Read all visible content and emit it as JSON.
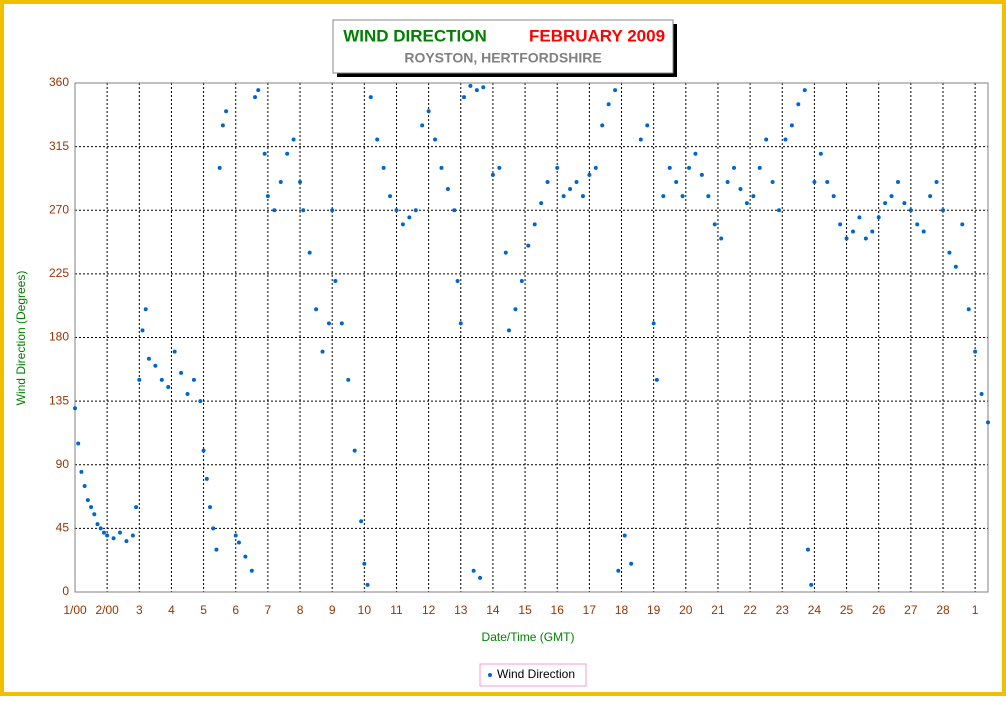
{
  "chart_data": {
    "type": "scatter",
    "title": "WIND DIRECTION",
    "title_period": "FEBRUARY 2009",
    "subtitle": "ROYSTON, HERTFORDSHIRE",
    "x_label": "Date/Time (GMT)",
    "y_label": "Wind Direction (Degrees)",
    "xlim": [
      1,
      29.4
    ],
    "xticks": [
      {
        "value": 1,
        "label": "1/00"
      },
      {
        "value": 2,
        "label": "2/00"
      },
      3,
      4,
      5,
      6,
      7,
      8,
      9,
      10,
      11,
      12,
      13,
      14,
      15,
      16,
      17,
      18,
      19,
      20,
      21,
      22,
      23,
      24,
      25,
      26,
      27,
      28,
      {
        "value": 29,
        "label": "1"
      }
    ],
    "ylim": [
      0,
      360
    ],
    "yticks": [
      0,
      45,
      90,
      135,
      180,
      225,
      270,
      315,
      360
    ],
    "grid": true,
    "legend": "bottom",
    "series": [
      {
        "name": "Wind Direction",
        "color": "#0066cc",
        "x": [
          1.0,
          1.1,
          1.2,
          1.3,
          1.4,
          1.5,
          1.6,
          1.7,
          1.8,
          1.9,
          2.0,
          2.2,
          2.4,
          2.6,
          2.8,
          2.9,
          3.0,
          3.1,
          3.2,
          3.3,
          3.5,
          3.7,
          3.9,
          4.1,
          4.3,
          4.5,
          4.7,
          4.9,
          5.0,
          5.1,
          5.2,
          5.3,
          5.4,
          5.5,
          5.6,
          5.7,
          6.0,
          6.1,
          6.3,
          6.5,
          6.6,
          6.7,
          6.9,
          7.0,
          7.2,
          7.4,
          7.6,
          7.8,
          8.0,
          8.1,
          8.3,
          8.5,
          8.7,
          8.9,
          9.0,
          9.1,
          9.3,
          9.5,
          9.7,
          9.9,
          10.0,
          10.1,
          10.2,
          10.4,
          10.6,
          10.8,
          11.0,
          11.2,
          11.4,
          11.6,
          11.8,
          12.0,
          12.2,
          12.4,
          12.6,
          12.8,
          12.9,
          13.0,
          13.1,
          13.3,
          13.4,
          13.5,
          13.6,
          13.7,
          14.0,
          14.2,
          14.4,
          14.5,
          14.7,
          14.9,
          15.1,
          15.3,
          15.5,
          15.7,
          16.0,
          16.2,
          16.4,
          16.6,
          16.8,
          17.0,
          17.2,
          17.4,
          17.6,
          17.8,
          17.9,
          18.1,
          18.3,
          18.6,
          18.8,
          19.0,
          19.1,
          19.3,
          19.5,
          19.7,
          19.9,
          20.1,
          20.3,
          20.5,
          20.7,
          20.9,
          21.1,
          21.3,
          21.5,
          21.7,
          21.9,
          22.1,
          22.3,
          22.5,
          22.7,
          22.9,
          23.1,
          23.3,
          23.5,
          23.7,
          23.8,
          23.9,
          24.0,
          24.2,
          24.4,
          24.6,
          24.8,
          25.0,
          25.2,
          25.4,
          25.6,
          25.8,
          26.0,
          26.2,
          26.4,
          26.6,
          26.8,
          27.0,
          27.2,
          27.4,
          27.6,
          27.8,
          28.0,
          28.2,
          28.4,
          28.6,
          28.8,
          29.0,
          29.2,
          29.4
        ],
        "values": [
          130,
          105,
          85,
          75,
          65,
          60,
          55,
          48,
          45,
          42,
          40,
          38,
          42,
          36,
          40,
          60,
          150,
          185,
          200,
          165,
          160,
          150,
          145,
          170,
          155,
          140,
          150,
          135,
          100,
          80,
          60,
          45,
          30,
          300,
          330,
          340,
          40,
          35,
          25,
          15,
          350,
          355,
          310,
          280,
          270,
          290,
          310,
          320,
          290,
          270,
          240,
          200,
          170,
          190,
          270,
          220,
          190,
          150,
          100,
          50,
          20,
          5,
          350,
          320,
          300,
          280,
          270,
          260,
          265,
          270,
          330,
          340,
          320,
          300,
          285,
          270,
          220,
          190,
          350,
          358,
          15,
          355,
          10,
          357,
          295,
          300,
          240,
          185,
          200,
          220,
          245,
          260,
          275,
          290,
          300,
          280,
          285,
          290,
          280,
          295,
          300,
          330,
          345,
          355,
          15,
          40,
          20,
          320,
          330,
          190,
          150,
          280,
          300,
          290,
          280,
          300,
          310,
          295,
          280,
          260,
          250,
          290,
          300,
          285,
          275,
          280,
          300,
          320,
          290,
          270,
          320,
          330,
          345,
          355,
          30,
          5,
          290,
          310,
          290,
          280,
          260,
          250,
          255,
          265,
          250,
          255,
          265,
          275,
          280,
          290,
          275,
          270,
          260,
          255,
          280,
          290,
          270,
          240,
          230,
          260,
          200,
          170,
          140,
          120
        ]
      }
    ]
  }
}
